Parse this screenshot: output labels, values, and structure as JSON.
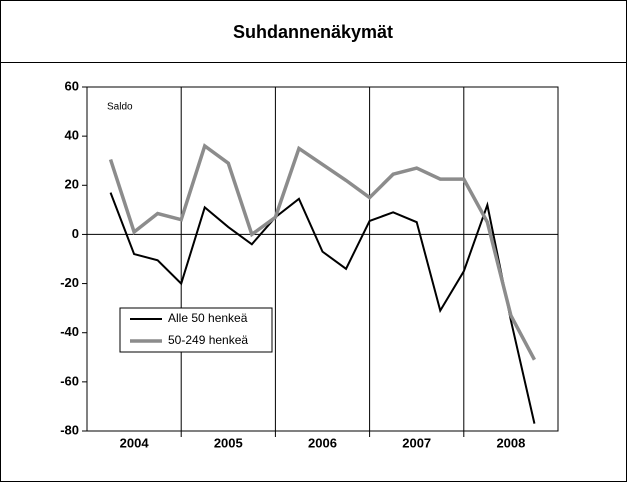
{
  "chart_data": {
    "type": "line",
    "title": "Suhdannenäkymät",
    "y_label": "Saldo",
    "x": [
      2004.25,
      2004.5,
      2004.75,
      2005,
      2005.25,
      2005.5,
      2005.75,
      2006,
      2006.25,
      2006.5,
      2006.75,
      2007,
      2007.25,
      2007.5,
      2007.75,
      2008,
      2008.25,
      2008.5,
      2008.75
    ],
    "series": [
      {
        "name": "Alle 50 henkeä",
        "color": "#000000",
        "values": [
          17,
          -8,
          -10.5,
          -20,
          11,
          3,
          -4,
          7,
          14.5,
          -7,
          -14,
          5.5,
          9,
          5,
          -31,
          -15,
          12,
          -35,
          -77
        ]
      },
      {
        "name": "50-249 henkeä",
        "color": "#8c8c8c",
        "values": [
          30.5,
          1,
          8.5,
          6,
          36,
          29,
          0,
          7,
          35,
          28.5,
          22,
          15,
          24.5,
          27,
          22.5,
          22.5,
          5,
          -33,
          -51
        ]
      }
    ],
    "xlim": [
      2004,
      2009
    ],
    "xticks": [
      {
        "value": 2004.5,
        "label": "2004"
      },
      {
        "value": 2005.5,
        "label": "2005"
      },
      {
        "value": 2006.5,
        "label": "2006"
      },
      {
        "value": 2007.5,
        "label": "2007"
      },
      {
        "value": 2008.5,
        "label": "2008"
      }
    ],
    "ylim": [
      -80,
      60
    ],
    "yticks": [
      -80,
      -60,
      -40,
      -20,
      0,
      20,
      40,
      60
    ],
    "legend": "lower left"
  }
}
